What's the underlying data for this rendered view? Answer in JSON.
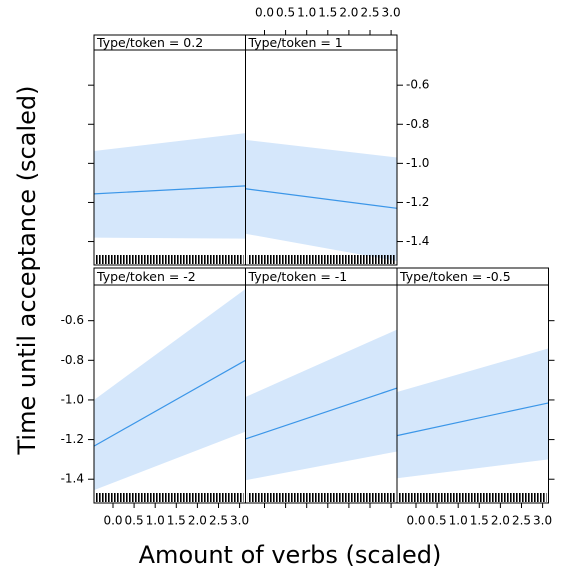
{
  "chart_data": {
    "type": "line",
    "xlabel": "Amount of verbs (scaled)",
    "ylabel": "Time until acceptance (scaled)",
    "xlim": [
      -0.45,
      3.14
    ],
    "ylim": [
      -1.52,
      -0.42
    ],
    "xticks": [
      {
        "value": 0,
        "label": "0.0"
      },
      0.5,
      {
        "value": 1,
        "label": "1.0"
      },
      1.5,
      {
        "value": 2,
        "label": "2.0"
      },
      2.5,
      {
        "value": 3,
        "label": "3.0"
      }
    ],
    "yticks": [
      -0.6,
      -0.8,
      {
        "value": -1,
        "label": "-1.0"
      },
      -1.2,
      -1.4
    ],
    "line_color": "#3b96e8",
    "band_color": "#d5e7fb",
    "panels": [
      {
        "label": "Type/token = 0.2",
        "x": [
          -0.45,
          3.14
        ],
        "values": [
          -1.156,
          -1.115
        ],
        "upper": [
          -0.937,
          -0.845
        ],
        "lower": [
          -1.38,
          -1.385
        ]
      },
      {
        "label": "Type/token = 1",
        "x": [
          -0.45,
          3.14
        ],
        "values": [
          -1.13,
          -1.23
        ],
        "upper": [
          -0.88,
          -0.97
        ],
        "lower": [
          -1.36,
          -1.5
        ]
      },
      {
        "label": "Type/token = -2",
        "x": [
          -0.45,
          3.14
        ],
        "values": [
          -1.233,
          -0.8
        ],
        "upper": [
          -1.0,
          -0.44
        ],
        "lower": [
          -1.455,
          -1.16
        ]
      },
      {
        "label": "Type/token = -1",
        "x": [
          -0.45,
          3.14
        ],
        "values": [
          -1.197,
          -0.94
        ],
        "upper": [
          -0.985,
          -0.645
        ],
        "lower": [
          -1.405,
          -1.26
        ]
      },
      {
        "label": "Type/token = -0.5",
        "x": [
          -0.45,
          3.14
        ],
        "values": [
          -1.18,
          -1.015
        ],
        "upper": [
          -0.96,
          -0.74
        ],
        "lower": [
          -1.395,
          -1.3
        ]
      }
    ]
  }
}
